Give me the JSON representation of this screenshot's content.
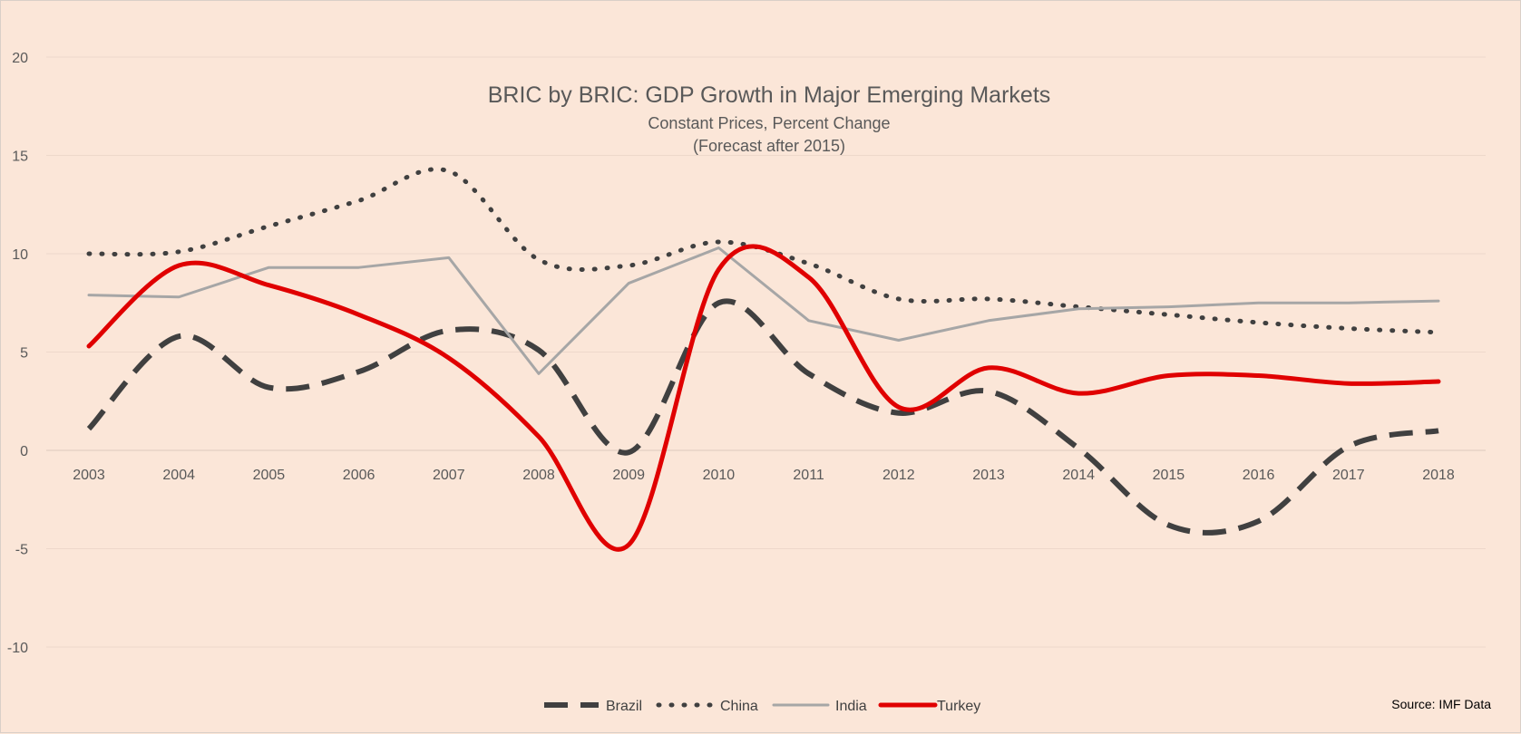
{
  "chart_data": {
    "type": "line",
    "title": "BRIC by BRIC: GDP Growth in Major Emerging Markets",
    "subtitle_lines": [
      "Constant Prices, Percent Change",
      "(Forecast after 2015)"
    ],
    "source": "Source: IMF Data",
    "x": [
      "2003",
      "2004",
      "2005",
      "2006",
      "2007",
      "2008",
      "2009",
      "2010",
      "2011",
      "2012",
      "2013",
      "2014",
      "2015",
      "2016",
      "2017",
      "2018"
    ],
    "ylim": [
      -10,
      20
    ],
    "yticks": [
      "20",
      "15",
      "10",
      "5",
      "0",
      "-5",
      "-10"
    ],
    "grid": true,
    "legend_position": "bottom",
    "series": [
      {
        "name": "Brazil",
        "style": "dashed",
        "color": "#404040",
        "values": [
          1.1,
          5.8,
          3.2,
          4.0,
          6.1,
          5.1,
          -0.1,
          7.5,
          3.9,
          1.9,
          3.0,
          0.1,
          -3.8,
          -3.6,
          0.2,
          1.0
        ]
      },
      {
        "name": "China",
        "style": "dotted",
        "color": "#404040",
        "values": [
          10.0,
          10.1,
          11.4,
          12.7,
          14.2,
          9.7,
          9.4,
          10.6,
          9.5,
          7.7,
          7.7,
          7.3,
          6.9,
          6.5,
          6.2,
          6.0
        ]
      },
      {
        "name": "India",
        "style": "solid",
        "color": "#a6a6a6",
        "values": [
          7.9,
          7.8,
          9.3,
          9.3,
          9.8,
          3.9,
          8.5,
          10.3,
          6.6,
          5.6,
          6.6,
          7.2,
          7.3,
          7.5,
          7.5,
          7.6
        ]
      },
      {
        "name": "Turkey",
        "style": "solid-thick",
        "color": "#e00000",
        "values": [
          5.3,
          9.4,
          8.4,
          6.9,
          4.7,
          0.7,
          -4.8,
          9.2,
          8.8,
          2.2,
          4.2,
          2.9,
          3.8,
          3.8,
          3.4,
          3.5
        ]
      }
    ]
  }
}
